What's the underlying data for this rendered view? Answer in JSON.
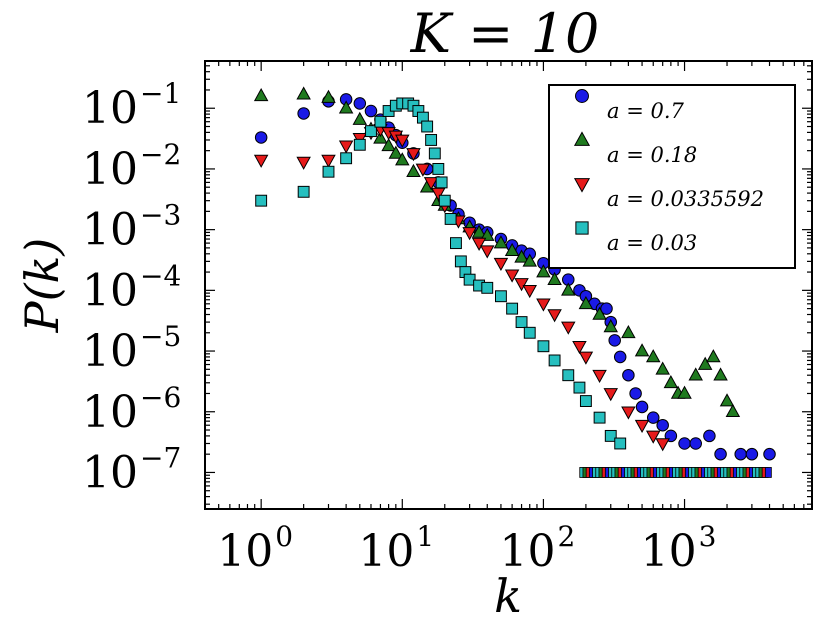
{
  "chart_data": {
    "type": "scatter",
    "title": "K = 10",
    "xlabel": "k",
    "ylabel": "P(k)",
    "xscale": "log",
    "yscale": "log",
    "xlim": [
      0.4,
      8000
    ],
    "ylim": [
      2.5e-08,
      0.6
    ],
    "x_ticks": [
      {
        "base": "10",
        "exp": "0",
        "value": 1
      },
      {
        "base": "10",
        "exp": "1",
        "value": 10
      },
      {
        "base": "10",
        "exp": "2",
        "value": 100
      },
      {
        "base": "10",
        "exp": "3",
        "value": 1000
      }
    ],
    "y_ticks": [
      {
        "base": "10",
        "exp": "−1",
        "value": 0.1
      },
      {
        "base": "10",
        "exp": "−2",
        "value": 0.01
      },
      {
        "base": "10",
        "exp": "−3",
        "value": 0.001
      },
      {
        "base": "10",
        "exp": "−4",
        "value": 0.0001
      },
      {
        "base": "10",
        "exp": "−5",
        "value": 1e-05
      },
      {
        "base": "10",
        "exp": "−6",
        "value": 1e-06
      },
      {
        "base": "10",
        "exp": "−7",
        "value": 1e-07
      }
    ],
    "legend_position": "top-right",
    "series": [
      {
        "name": "a = 0.7",
        "marker": "circle",
        "color": "#1a1ae6",
        "points": [
          [
            1,
            0.033
          ],
          [
            2,
            0.082
          ],
          [
            3,
            0.13
          ],
          [
            4,
            0.14
          ],
          [
            5,
            0.12
          ],
          [
            6,
            0.09
          ],
          [
            7,
            0.065
          ],
          [
            8,
            0.048
          ],
          [
            9,
            0.036
          ],
          [
            10,
            0.027
          ],
          [
            12,
            0.018
          ],
          [
            15,
            0.01
          ],
          [
            18,
            0.006
          ],
          [
            22,
            0.0025
          ],
          [
            25,
            0.0018
          ],
          [
            30,
            0.0013
          ],
          [
            35,
            0.001
          ],
          [
            40,
            0.0009
          ],
          [
            50,
            0.0007
          ],
          [
            60,
            0.00055
          ],
          [
            70,
            0.00045
          ],
          [
            80,
            0.0004
          ],
          [
            100,
            0.00028
          ],
          [
            120,
            0.00022
          ],
          [
            150,
            0.00015
          ],
          [
            180,
            0.0001
          ],
          [
            200,
            8e-05
          ],
          [
            230,
            6e-05
          ],
          [
            260,
            5e-05
          ],
          [
            280,
            5e-05
          ],
          [
            300,
            3e-05
          ],
          [
            320,
            1.5e-05
          ],
          [
            350,
            8e-06
          ],
          [
            400,
            4e-06
          ],
          [
            450,
            2e-06
          ],
          [
            500,
            1.2e-06
          ],
          [
            600,
            8e-07
          ],
          [
            700,
            6e-07
          ],
          [
            800,
            4e-07
          ],
          [
            1000,
            3e-07
          ],
          [
            1200,
            3e-07
          ],
          [
            1500,
            4e-07
          ],
          [
            1800,
            2e-07
          ],
          [
            2500,
            2e-07
          ],
          [
            3000,
            2e-07
          ],
          [
            4000,
            2e-07
          ]
        ]
      },
      {
        "name": "a = 0.18",
        "marker": "triangle-up",
        "color": "#1f7a1f",
        "points": [
          [
            1,
            0.16
          ],
          [
            2,
            0.17
          ],
          [
            3,
            0.15
          ],
          [
            4,
            0.1
          ],
          [
            5,
            0.065
          ],
          [
            6,
            0.045
          ],
          [
            7,
            0.032
          ],
          [
            8,
            0.024
          ],
          [
            9,
            0.018
          ],
          [
            10,
            0.014
          ],
          [
            12,
            0.009
          ],
          [
            15,
            0.005
          ],
          [
            18,
            0.003
          ],
          [
            20,
            0.0025
          ],
          [
            25,
            0.0015
          ],
          [
            30,
            0.0011
          ],
          [
            35,
            0.0009
          ],
          [
            40,
            0.0008
          ],
          [
            50,
            0.0006
          ],
          [
            60,
            0.00045
          ],
          [
            70,
            0.00035
          ],
          [
            80,
            0.0003
          ],
          [
            100,
            0.0002
          ],
          [
            120,
            0.00015
          ],
          [
            150,
            0.0001
          ],
          [
            200,
            6e-05
          ],
          [
            250,
            4e-05
          ],
          [
            300,
            2.5e-05
          ],
          [
            400,
            2e-05
          ],
          [
            500,
            1e-05
          ],
          [
            600,
            8e-06
          ],
          [
            700,
            5e-06
          ],
          [
            800,
            3e-06
          ],
          [
            900,
            2e-06
          ],
          [
            1000,
            2e-06
          ],
          [
            1200,
            4e-06
          ],
          [
            1400,
            6e-06
          ],
          [
            1600,
            8e-06
          ],
          [
            1800,
            4e-06
          ],
          [
            2000,
            1.5e-06
          ],
          [
            2200,
            1e-06
          ]
        ]
      },
      {
        "name": "a = 0.0335592",
        "marker": "triangle-down",
        "color": "#e61a1a",
        "points": [
          [
            1,
            0.014
          ],
          [
            2,
            0.013
          ],
          [
            3,
            0.014
          ],
          [
            4,
            0.024
          ],
          [
            5,
            0.032
          ],
          [
            6,
            0.04
          ],
          [
            7,
            0.045
          ],
          [
            8,
            0.04
          ],
          [
            9,
            0.035
          ],
          [
            10,
            0.03
          ],
          [
            12,
            0.018
          ],
          [
            14,
            0.01
          ],
          [
            16,
            0.006
          ],
          [
            18,
            0.004
          ],
          [
            20,
            0.0025
          ],
          [
            25,
            0.0014
          ],
          [
            30,
            0.0009
          ],
          [
            35,
            0.0006
          ],
          [
            40,
            0.00045
          ],
          [
            50,
            0.00028
          ],
          [
            60,
            0.00018
          ],
          [
            70,
            0.00013
          ],
          [
            80,
            0.0001
          ],
          [
            100,
            6e-05
          ],
          [
            120,
            4e-05
          ],
          [
            150,
            2.5e-05
          ],
          [
            180,
            1.2e-05
          ],
          [
            200,
            8e-06
          ],
          [
            250,
            4e-06
          ],
          [
            300,
            2e-06
          ],
          [
            400,
            1e-06
          ],
          [
            500,
            6e-07
          ],
          [
            600,
            4e-07
          ],
          [
            700,
            3e-07
          ]
        ]
      },
      {
        "name": "a = 0.03",
        "marker": "square",
        "color": "#26bfbf",
        "points": [
          [
            1,
            0.003
          ],
          [
            2,
            0.0042
          ],
          [
            3,
            0.009
          ],
          [
            4,
            0.015
          ],
          [
            5,
            0.025
          ],
          [
            6,
            0.042
          ],
          [
            7,
            0.06
          ],
          [
            8,
            0.09
          ],
          [
            9,
            0.11
          ],
          [
            10,
            0.12
          ],
          [
            11,
            0.12
          ],
          [
            12,
            0.11
          ],
          [
            13,
            0.09
          ],
          [
            14,
            0.07
          ],
          [
            15,
            0.05
          ],
          [
            16,
            0.03
          ],
          [
            17,
            0.018
          ],
          [
            18,
            0.01
          ],
          [
            19,
            0.006
          ],
          [
            20,
            0.003
          ],
          [
            22,
            0.0015
          ],
          [
            24,
            0.0006
          ],
          [
            26,
            0.0003
          ],
          [
            28,
            0.0002
          ],
          [
            30,
            0.00015
          ],
          [
            35,
            0.00012
          ],
          [
            40,
            0.00011
          ],
          [
            50,
            8e-05
          ],
          [
            60,
            5e-05
          ],
          [
            70,
            3e-05
          ],
          [
            80,
            2e-05
          ],
          [
            100,
            1.2e-05
          ],
          [
            120,
            7e-06
          ],
          [
            150,
            4e-06
          ],
          [
            180,
            2.5e-06
          ],
          [
            200,
            1.5e-06
          ],
          [
            250,
            8e-07
          ],
          [
            300,
            4e-07
          ],
          [
            350,
            3e-07
          ]
        ]
      }
    ],
    "floor_band": {
      "value": 1e-07,
      "x_start": 190,
      "x_end": 4000
    }
  }
}
